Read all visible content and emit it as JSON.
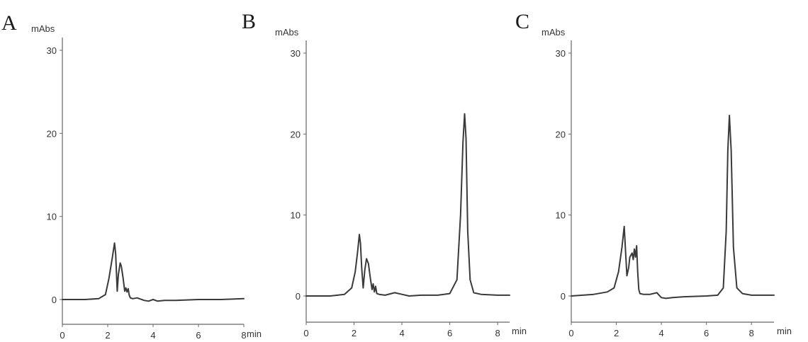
{
  "chart_data": [
    {
      "type": "line",
      "panel_label": "A",
      "ylabel": "mAbs",
      "xlabel": "min",
      "xlim": [
        0,
        8
      ],
      "ylim": [
        -3,
        32
      ],
      "xticks": [
        0,
        2,
        4,
        6,
        8
      ],
      "yticks": [
        0,
        10,
        20,
        30
      ],
      "series": [
        {
          "x": [
            0,
            1.0,
            1.6,
            1.9,
            2.05,
            2.2,
            2.3,
            2.35,
            2.42,
            2.47,
            2.55,
            2.6,
            2.68,
            2.75,
            2.8,
            2.85,
            2.9,
            2.95,
            3.0,
            3.1,
            3.3,
            3.6,
            3.8,
            4.0,
            4.2,
            4.5,
            5.0,
            6.0,
            7.0,
            8.0
          ],
          "y": [
            0,
            0,
            0.1,
            0.6,
            2.5,
            5.0,
            6.8,
            5.5,
            1.0,
            3.0,
            4.4,
            4.0,
            2.5,
            1.0,
            1.4,
            0.9,
            1.3,
            0.5,
            0.2,
            0.1,
            0.2,
            -0.1,
            -0.2,
            0.0,
            -0.2,
            -0.1,
            -0.1,
            0.0,
            0.0,
            0.1
          ]
        }
      ]
    },
    {
      "type": "line",
      "panel_label": "B",
      "ylabel": "mAbs",
      "xlabel": "min",
      "xlim": [
        0,
        8.5
      ],
      "ylim": [
        -3,
        32
      ],
      "xticks": [
        0,
        2,
        4,
        6,
        8
      ],
      "yticks": [
        0,
        10,
        20,
        30
      ],
      "series": [
        {
          "x": [
            0,
            1.0,
            1.6,
            1.9,
            2.05,
            2.15,
            2.22,
            2.27,
            2.32,
            2.38,
            2.45,
            2.52,
            2.6,
            2.68,
            2.75,
            2.8,
            2.85,
            2.9,
            2.95,
            3.05,
            3.3,
            3.7,
            4.0,
            4.3,
            4.8,
            5.5,
            6.0,
            6.3,
            6.45,
            6.55,
            6.62,
            6.68,
            6.75,
            6.85,
            7.0,
            7.3,
            8.0,
            8.5
          ],
          "y": [
            0,
            0,
            0.2,
            1.0,
            3.0,
            5.5,
            7.6,
            6.5,
            3.5,
            1.0,
            3.2,
            4.6,
            4.0,
            2.2,
            0.8,
            1.5,
            0.5,
            1.2,
            0.3,
            0.2,
            0.1,
            0.4,
            0.2,
            0.0,
            0.1,
            0.1,
            0.3,
            2.0,
            10.0,
            19.0,
            22.5,
            19.5,
            8.0,
            2.0,
            0.4,
            0.2,
            0.1,
            0.1
          ]
        }
      ]
    },
    {
      "type": "line",
      "panel_label": "C",
      "ylabel": "mAbs",
      "xlabel": "min",
      "xlim": [
        0,
        9
      ],
      "ylim": [
        -3,
        32
      ],
      "xticks": [
        0,
        2,
        4,
        6,
        8
      ],
      "yticks": [
        0,
        10,
        20,
        30
      ],
      "series": [
        {
          "x": [
            0,
            1.0,
            1.6,
            1.9,
            2.1,
            2.25,
            2.35,
            2.42,
            2.47,
            2.55,
            2.6,
            2.7,
            2.75,
            2.8,
            2.85,
            2.9,
            2.95,
            3.0,
            3.05,
            3.2,
            3.5,
            3.8,
            3.9,
            4.0,
            4.2,
            4.5,
            5.0,
            6.0,
            6.5,
            6.75,
            6.88,
            6.95,
            7.02,
            7.1,
            7.2,
            7.35,
            7.6,
            8.0,
            9.0
          ],
          "y": [
            0,
            0.2,
            0.5,
            1.0,
            3.0,
            6.0,
            8.6,
            5.0,
            2.5,
            3.5,
            4.8,
            5.3,
            4.5,
            5.8,
            4.8,
            6.2,
            3.0,
            0.8,
            0.3,
            0.2,
            0.2,
            0.4,
            0.1,
            -0.2,
            -0.3,
            -0.2,
            -0.1,
            0.0,
            0.1,
            1.0,
            8.0,
            18.0,
            22.3,
            18.0,
            6.0,
            1.0,
            0.3,
            0.1,
            0.1
          ]
        }
      ]
    }
  ]
}
